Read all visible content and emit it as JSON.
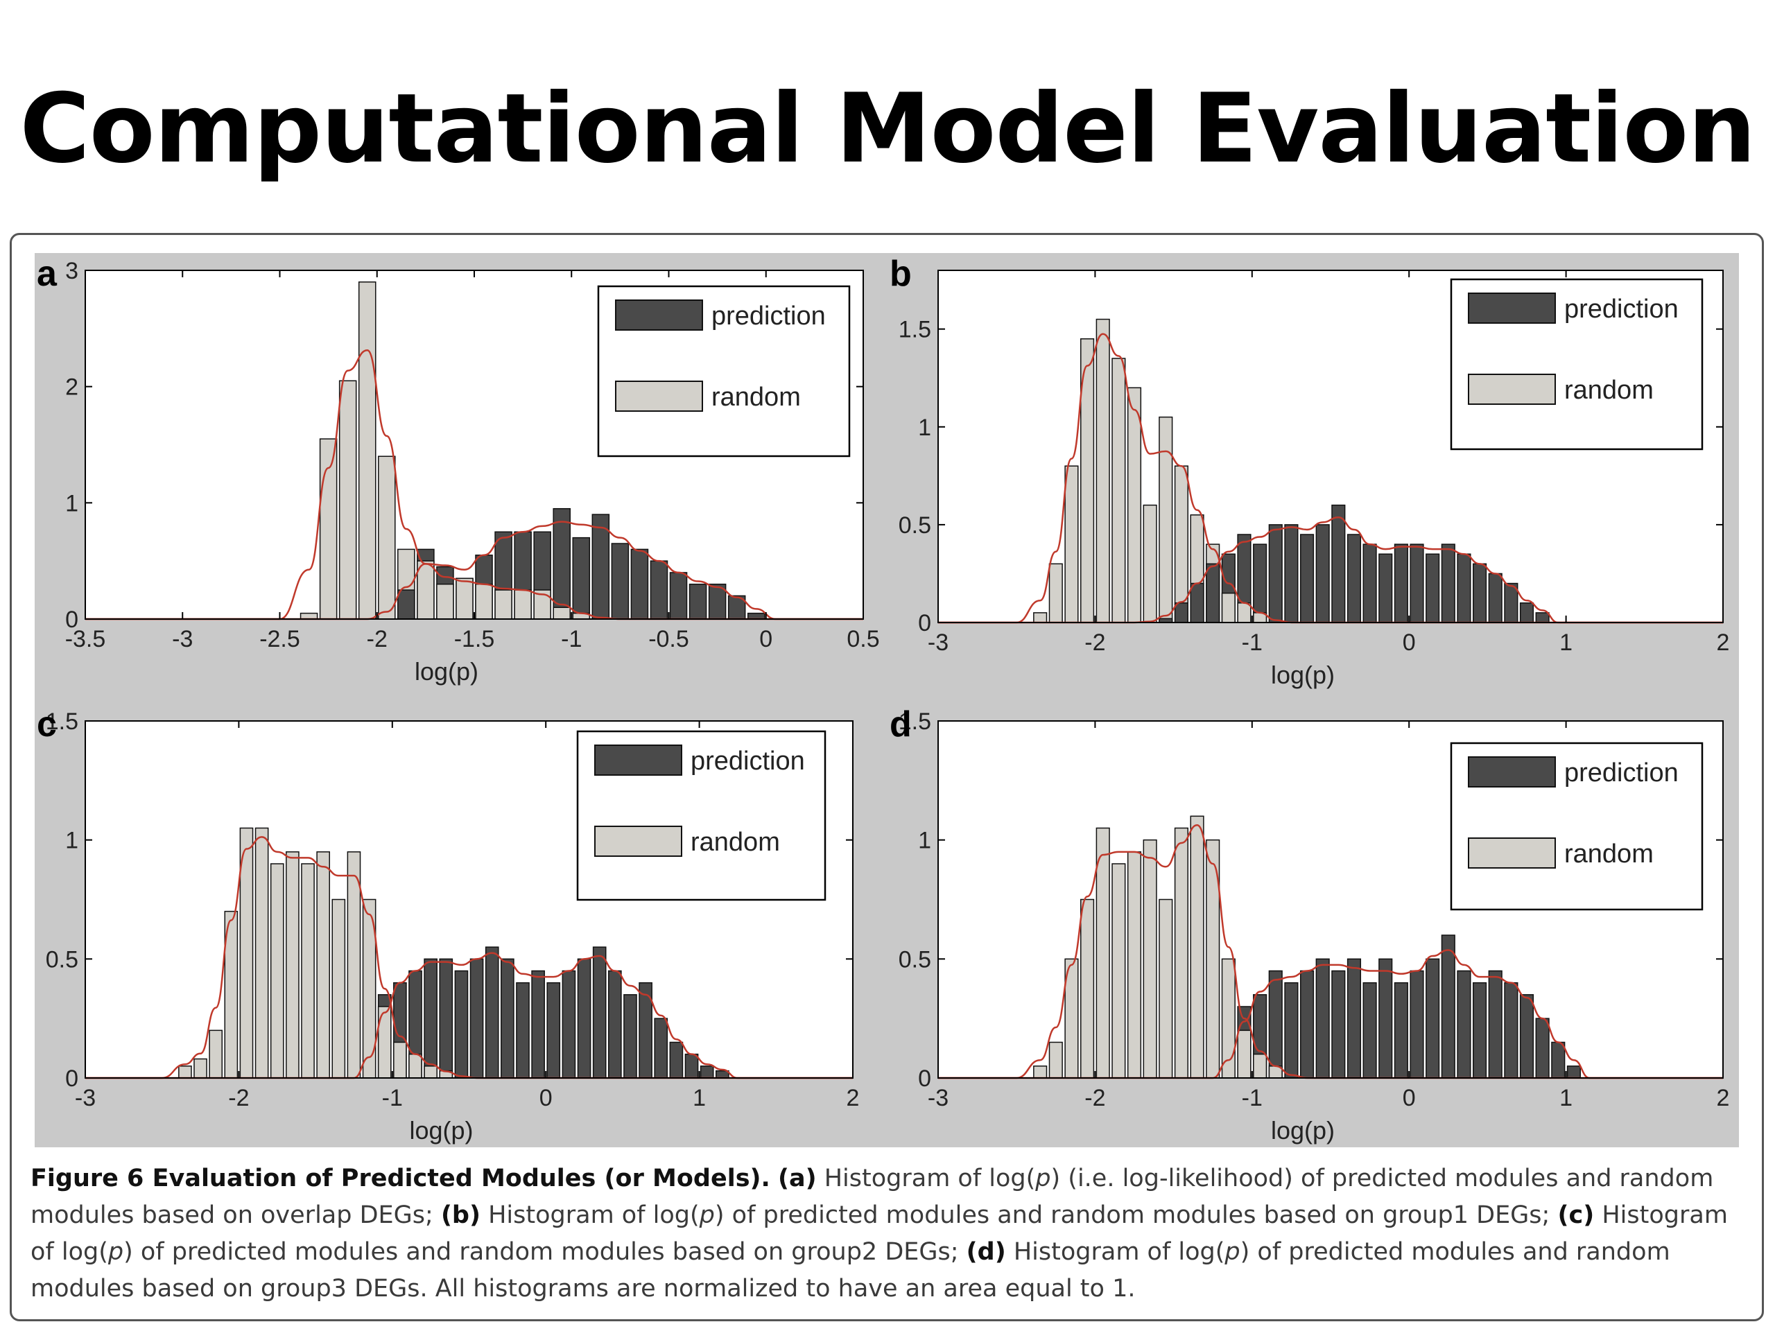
{
  "slide": {
    "title": "Computational Model Evaluation"
  },
  "legend_labels": {
    "prediction": "prediction",
    "random": "random"
  },
  "colors": {
    "prediction": "#4a4a4a",
    "random": "#d3d1cb",
    "fit_line": "#c0392b",
    "panel_bg": "#c9c9c9"
  },
  "caption": {
    "fig_label": "Figure 6 Evaluation of Predicted Modules (or Models).",
    "a_tag": "(a)",
    "a_text_1": " Histogram of log(",
    "p": "p",
    "a_text_2": ") (i.e. log-likelihood) of predicted modules and random modules based on overlap DEGs; ",
    "b_tag": "(b)",
    "b_text_1": " Histogram of log(",
    "b_text_2": ") of predicted modules and random modules based on group1 DEGs; ",
    "c_tag": "(c)",
    "c_text_1": " Histogram of log(",
    "c_text_2": ") of predicted modules and random modules based on group2 DEGs; ",
    "d_tag": "(d)",
    "d_text_1": " Histogram of log(",
    "d_text_2": ") of predicted modules and random modules based on group3 DEGs. All histograms are normalized to have an area equal to 1."
  },
  "chart_data": [
    {
      "type": "bar",
      "panel_label": "a",
      "xlabel": "log(p)",
      "xlim": [
        -3.5,
        0.5
      ],
      "ylim": [
        0,
        3
      ],
      "xticks": [
        "-3.5",
        "-3",
        "-2.5",
        "-2",
        "-1.5",
        "-1",
        "-0.5",
        "0",
        "0.5"
      ],
      "yticks": [
        "0",
        "1",
        "2",
        "3"
      ],
      "legend": "top-right",
      "bin_width": 0.1,
      "bin_start": -2.4,
      "series": [
        {
          "name": "prediction",
          "values": [
            0,
            0,
            0,
            0,
            0,
            0.25,
            0.6,
            0.45,
            0.35,
            0.55,
            0.75,
            0.75,
            0.75,
            0.95,
            0.7,
            0.9,
            0.65,
            0.6,
            0.5,
            0.4,
            0.3,
            0.3,
            0.2,
            0.05
          ]
        },
        {
          "name": "random",
          "values": [
            0.05,
            1.55,
            2.05,
            2.9,
            1.4,
            0.6,
            0.5,
            0.3,
            0.35,
            0.3,
            0.25,
            0.25,
            0.25,
            0.1,
            0.05,
            0,
            0,
            0,
            0,
            0,
            0,
            0,
            0,
            0
          ]
        }
      ]
    },
    {
      "type": "bar",
      "panel_label": "b",
      "xlabel": "log(p)",
      "xlim": [
        -3,
        2
      ],
      "ylim": [
        0,
        1.8
      ],
      "xticks": [
        "-3",
        "-2",
        "-1",
        "0",
        "1",
        "2"
      ],
      "yticks": [
        "0",
        "0.5",
        "1",
        "1.5"
      ],
      "legend": "top-right",
      "bin_width": 0.1,
      "bin_start": -2.4,
      "series": [
        {
          "name": "prediction",
          "values": [
            0,
            0,
            0,
            0,
            0,
            0,
            0,
            0,
            0.02,
            0.1,
            0.2,
            0.3,
            0.35,
            0.45,
            0.4,
            0.5,
            0.5,
            0.45,
            0.5,
            0.6,
            0.45,
            0.4,
            0.35,
            0.4,
            0.4,
            0.35,
            0.4,
            0.35,
            0.3,
            0.25,
            0.2,
            0.1,
            0.05
          ]
        },
        {
          "name": "random",
          "values": [
            0.05,
            0.3,
            0.8,
            1.45,
            1.55,
            1.35,
            1.2,
            0.6,
            1.05,
            0.8,
            0.55,
            0.4,
            0.15,
            0.1,
            0.05,
            0,
            0,
            0,
            0,
            0,
            0,
            0,
            0,
            0,
            0,
            0,
            0,
            0,
            0,
            0,
            0,
            0,
            0
          ]
        }
      ]
    },
    {
      "type": "bar",
      "panel_label": "c",
      "xlabel": "log(p)",
      "xlim": [
        -3,
        2
      ],
      "ylim": [
        0,
        1.5
      ],
      "xticks": [
        "-3",
        "-2",
        "-1",
        "0",
        "1",
        "2"
      ],
      "yticks": [
        "0",
        "0.5",
        "1",
        "1.5"
      ],
      "legend": "top-right",
      "bin_width": 0.1,
      "bin_start": -2.4,
      "series": [
        {
          "name": "prediction",
          "values": [
            0,
            0,
            0,
            0,
            0,
            0,
            0,
            0,
            0,
            0,
            0,
            0,
            0,
            0.35,
            0.4,
            0.45,
            0.5,
            0.5,
            0.45,
            0.5,
            0.55,
            0.5,
            0.4,
            0.45,
            0.4,
            0.45,
            0.5,
            0.55,
            0.45,
            0.35,
            0.4,
            0.25,
            0.15,
            0.1,
            0.05,
            0.03
          ]
        },
        {
          "name": "random",
          "values": [
            0.05,
            0.08,
            0.2,
            0.7,
            1.05,
            1.05,
            0.9,
            0.95,
            0.9,
            0.95,
            0.75,
            0.95,
            0.75,
            0.3,
            0.15,
            0.1,
            0.05,
            0.03,
            0,
            0,
            0,
            0,
            0,
            0,
            0,
            0,
            0,
            0,
            0,
            0,
            0,
            0,
            0,
            0,
            0,
            0
          ]
        }
      ]
    },
    {
      "type": "bar",
      "panel_label": "d",
      "xlabel": "log(p)",
      "xlim": [
        -3,
        2
      ],
      "ylim": [
        0,
        1.5
      ],
      "xticks": [
        "-3",
        "-2",
        "-1",
        "0",
        "1",
        "2"
      ],
      "yticks": [
        "0",
        "0.5",
        "1",
        "1.5"
      ],
      "legend": "top-right",
      "bin_width": 0.1,
      "bin_start": -2.4,
      "series": [
        {
          "name": "prediction",
          "values": [
            0,
            0,
            0,
            0,
            0,
            0,
            0,
            0,
            0,
            0,
            0,
            0,
            0,
            0.3,
            0.35,
            0.45,
            0.4,
            0.45,
            0.5,
            0.45,
            0.5,
            0.4,
            0.5,
            0.4,
            0.45,
            0.5,
            0.6,
            0.45,
            0.4,
            0.45,
            0.4,
            0.35,
            0.25,
            0.15,
            0.05
          ]
        },
        {
          "name": "random",
          "values": [
            0.05,
            0.15,
            0.5,
            0.75,
            1.05,
            0.9,
            0.95,
            1.0,
            0.75,
            1.05,
            1.1,
            1.0,
            0.5,
            0.2,
            0.1,
            0.05,
            0,
            0,
            0,
            0,
            0,
            0,
            0,
            0,
            0,
            0,
            0,
            0,
            0,
            0,
            0,
            0,
            0,
            0,
            0
          ]
        }
      ]
    }
  ]
}
